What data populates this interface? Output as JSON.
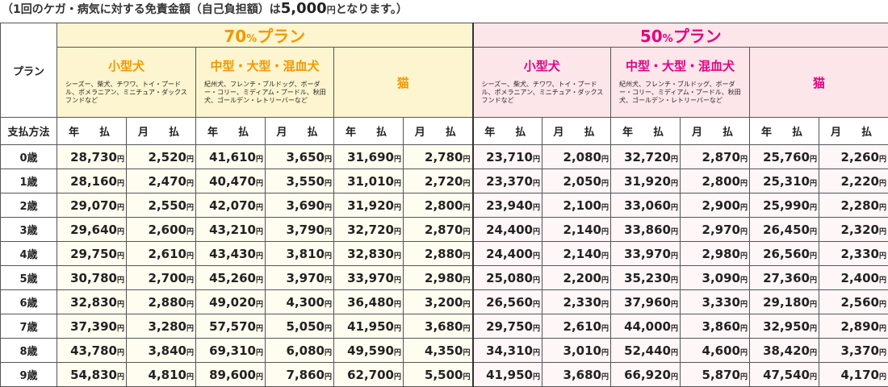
{
  "note": {
    "prefix": "（1回のケガ・病気に対する免責金額（自己負担額）は",
    "amount": "5,000",
    "yen": "円",
    "suffix": "となります。）"
  },
  "header": {
    "plan_label": "プラン",
    "pay_method_label": "支払方法",
    "yearly": "年　払",
    "monthly": "月　払"
  },
  "plans": [
    {
      "pct": "70",
      "pct_sign": "%",
      "name": "プラン",
      "categories": [
        {
          "name": "小型犬",
          "breeds": "シーズー、柴犬、チワワ、トイ・プードル、ポメラニアン、ミニチュア・ダックスフンドなど"
        },
        {
          "name": "中型・大型・混血犬",
          "breeds": "紀州犬、フレンチ・ブルドッグ、ボーダー・コリー、ミディアム・プードル、秋田犬、ゴールデン・レトリーバーなど"
        },
        {
          "name": "猫",
          "breeds": ""
        }
      ],
      "color": "#f39800",
      "bg": "#fdf5cf"
    },
    {
      "pct": "50",
      "pct_sign": "%",
      "name": "プラン",
      "categories": [
        {
          "name": "小型犬",
          "breeds": "シーズー、柴犬、チワワ、トイ・プードル、ポメラニアン、ミニチュア・ダックスフンドなど"
        },
        {
          "name": "中型・大型・混血犬",
          "breeds": "紀州犬、フレンチ・ブルドッグ、ボーダー・コリー、ミディアム・プードル、秋田犬、ゴールデン・レトリーバーなど"
        },
        {
          "name": "猫",
          "breeds": ""
        }
      ],
      "color": "#e4007f",
      "bg": "#fce6ea"
    }
  ],
  "yen": "円",
  "rows": [
    {
      "age": "0歳",
      "values": [
        "28,730",
        "2,520",
        "41,610",
        "3,650",
        "31,690",
        "2,780",
        "23,710",
        "2,080",
        "32,720",
        "2,870",
        "25,760",
        "2,260"
      ]
    },
    {
      "age": "1歳",
      "values": [
        "28,160",
        "2,470",
        "40,470",
        "3,550",
        "31,010",
        "2,720",
        "23,370",
        "2,050",
        "31,920",
        "2,800",
        "25,310",
        "2,220"
      ]
    },
    {
      "age": "2歳",
      "values": [
        "29,070",
        "2,550",
        "42,070",
        "3,690",
        "31,920",
        "2,800",
        "23,940",
        "2,100",
        "33,060",
        "2,900",
        "25,990",
        "2,280"
      ]
    },
    {
      "age": "3歳",
      "values": [
        "29,640",
        "2,600",
        "43,210",
        "3,790",
        "32,720",
        "2,870",
        "24,400",
        "2,140",
        "33,860",
        "2,970",
        "26,450",
        "2,320"
      ]
    },
    {
      "age": "4歳",
      "values": [
        "29,750",
        "2,610",
        "43,430",
        "3,810",
        "32,830",
        "2,880",
        "24,400",
        "2,140",
        "33,970",
        "2,980",
        "26,560",
        "2,330"
      ]
    },
    {
      "age": "5歳",
      "values": [
        "30,780",
        "2,700",
        "45,260",
        "3,970",
        "33,970",
        "2,980",
        "25,080",
        "2,200",
        "35,230",
        "3,090",
        "27,360",
        "2,400"
      ]
    },
    {
      "age": "6歳",
      "values": [
        "32,830",
        "2,880",
        "49,020",
        "4,300",
        "36,480",
        "3,200",
        "26,560",
        "2,330",
        "37,960",
        "3,330",
        "29,180",
        "2,560"
      ]
    },
    {
      "age": "7歳",
      "values": [
        "37,390",
        "3,280",
        "57,570",
        "5,050",
        "41,950",
        "3,680",
        "29,750",
        "2,610",
        "44,000",
        "3,860",
        "32,950",
        "2,890"
      ]
    },
    {
      "age": "8歳",
      "values": [
        "43,780",
        "3,840",
        "69,310",
        "6,080",
        "49,590",
        "4,350",
        "34,310",
        "3,010",
        "52,440",
        "4,600",
        "38,420",
        "3,370"
      ]
    },
    {
      "age": "9歳",
      "values": [
        "54,830",
        "4,810",
        "89,600",
        "7,860",
        "62,700",
        "5,500",
        "41,950",
        "3,680",
        "66,920",
        "5,870",
        "47,540",
        "4,170"
      ]
    }
  ]
}
